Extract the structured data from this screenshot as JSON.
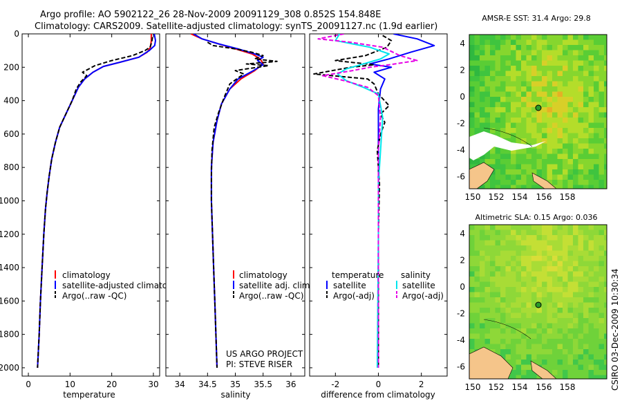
{
  "header": {
    "line1": "Argo profile: AO 5902122_26 28-Nov-2009 20091129_308 0.852S 154.848E",
    "line2": "Climatology: CARS2009. Satellite-adjusted climatology: synTS_20091127.nc (1.9d earlier)"
  },
  "colors": {
    "clim": "#ff0000",
    "sat": "#0000ff",
    "argo": "#000000",
    "sat_sal": "#00e5ee",
    "argo_sal": "#e600e6",
    "map_green": "#3fc43f",
    "land": "#f5c58a"
  },
  "chart_data": [
    {
      "type": "line",
      "name": "temperature-profile",
      "xlabel": "temperature",
      "ylabel": "",
      "xlim": [
        -1.5,
        31.5
      ],
      "ylim": [
        2050,
        0
      ],
      "xticks": [
        "0",
        "10",
        "20",
        "30"
      ],
      "xtick_values": [
        0,
        10,
        20,
        30
      ],
      "yticks": [
        "0",
        "200",
        "400",
        "600",
        "800",
        "1000",
        "1200",
        "1400",
        "1600",
        "1800",
        "2000"
      ],
      "ytick_values": [
        0,
        200,
        400,
        600,
        800,
        1000,
        1200,
        1400,
        1600,
        1800,
        2000
      ],
      "legend": [
        "climatology",
        "satellite-adjusted climatology",
        "Argo(..raw -QC)"
      ],
      "series": [
        {
          "name": "climatology",
          "color": "#ff0000",
          "points": [
            [
              29.5,
              0
            ],
            [
              29.5,
              40
            ],
            [
              29.3,
              80
            ],
            [
              28.5,
              110
            ],
            [
              26.5,
              140
            ],
            [
              22,
              170
            ],
            [
              18,
              195
            ],
            [
              15.5,
              230
            ],
            [
              13.5,
              270
            ],
            [
              12,
              320
            ],
            [
              10.5,
              400
            ],
            [
              9,
              480
            ],
            [
              7.5,
              560
            ],
            [
              6.5,
              650
            ],
            [
              5.6,
              750
            ],
            [
              5,
              850
            ],
            [
              4.5,
              950
            ],
            [
              4.1,
              1050
            ],
            [
              3.7,
              1200
            ],
            [
              3.3,
              1400
            ],
            [
              2.9,
              1600
            ],
            [
              2.6,
              1800
            ],
            [
              2.2,
              2000
            ]
          ]
        },
        {
          "name": "satellite-adjusted",
          "color": "#0000ff",
          "points": [
            [
              30.2,
              0
            ],
            [
              30.5,
              40
            ],
            [
              30.3,
              70
            ],
            [
              29,
              100
            ],
            [
              26.5,
              140
            ],
            [
              22,
              170
            ],
            [
              18,
              195
            ],
            [
              15.5,
              230
            ],
            [
              13.5,
              270
            ],
            [
              12,
              320
            ],
            [
              10.5,
              400
            ],
            [
              9,
              480
            ],
            [
              7.5,
              560
            ],
            [
              6.5,
              650
            ],
            [
              5.6,
              750
            ],
            [
              5,
              850
            ],
            [
              4.5,
              950
            ],
            [
              4.1,
              1050
            ],
            [
              3.7,
              1200
            ],
            [
              3.3,
              1400
            ],
            [
              2.9,
              1600
            ],
            [
              2.6,
              1800
            ],
            [
              2.2,
              2000
            ]
          ]
        },
        {
          "name": "argo",
          "color": "#000000",
          "dashed": true,
          "points": [
            [
              29.8,
              20
            ],
            [
              29.6,
              50
            ],
            [
              29.2,
              80
            ],
            [
              28,
              100
            ],
            [
              25,
              130
            ],
            [
              20,
              160
            ],
            [
              16,
              190
            ],
            [
              14.5,
              210
            ],
            [
              13,
              230
            ],
            [
              14,
              250
            ],
            [
              12.5,
              290
            ],
            [
              11.5,
              330
            ],
            [
              10.5,
              400
            ],
            [
              9,
              480
            ],
            [
              7.5,
              560
            ],
            [
              6.5,
              650
            ],
            [
              5.6,
              750
            ],
            [
              5,
              850
            ],
            [
              4.5,
              950
            ],
            [
              4.1,
              1050
            ],
            [
              3.7,
              1200
            ],
            [
              3.3,
              1400
            ],
            [
              2.9,
              1600
            ],
            [
              2.6,
              1800
            ],
            [
              2.2,
              2000
            ]
          ]
        }
      ]
    },
    {
      "type": "line",
      "name": "salinity-profile",
      "xlabel": "salinity",
      "xlim": [
        33.75,
        36.25
      ],
      "ylim": [
        2050,
        0
      ],
      "xticks": [
        "34",
        "34.5",
        "35",
        "35.5",
        "36"
      ],
      "xtick_values": [
        34,
        34.5,
        35,
        35.5,
        36
      ],
      "legend": [
        "climatology",
        "satellite adj. clim.",
        "Argo(..raw -QC)"
      ],
      "annotations": [
        "US ARGO PROJECT",
        "PI: STEVE RISER"
      ],
      "series": [
        {
          "name": "climatology",
          "color": "#ff0000",
          "points": [
            [
              34.2,
              0
            ],
            [
              34.4,
              30
            ],
            [
              34.7,
              60
            ],
            [
              35.0,
              90
            ],
            [
              35.3,
              120
            ],
            [
              35.45,
              150
            ],
            [
              35.5,
              180
            ],
            [
              35.35,
              220
            ],
            [
              35.1,
              270
            ],
            [
              34.9,
              330
            ],
            [
              34.75,
              420
            ],
            [
              34.67,
              520
            ],
            [
              34.6,
              650
            ],
            [
              34.57,
              800
            ],
            [
              34.57,
              1000
            ],
            [
              34.59,
              1200
            ],
            [
              34.61,
              1400
            ],
            [
              34.63,
              1600
            ],
            [
              34.65,
              1800
            ],
            [
              34.67,
              2000
            ]
          ]
        },
        {
          "name": "satellite-adjusted",
          "color": "#0000ff",
          "points": [
            [
              34.25,
              0
            ],
            [
              34.4,
              30
            ],
            [
              34.7,
              60
            ],
            [
              35.05,
              90
            ],
            [
              35.35,
              120
            ],
            [
              35.5,
              140
            ],
            [
              35.4,
              160
            ],
            [
              35.5,
              185
            ],
            [
              35.3,
              225
            ],
            [
              35.05,
              270
            ],
            [
              34.9,
              330
            ],
            [
              34.75,
              420
            ],
            [
              34.67,
              520
            ],
            [
              34.6,
              650
            ],
            [
              34.57,
              800
            ],
            [
              34.57,
              1000
            ],
            [
              34.59,
              1200
            ],
            [
              34.61,
              1400
            ],
            [
              34.63,
              1600
            ],
            [
              34.65,
              1800
            ],
            [
              34.67,
              2000
            ]
          ]
        },
        {
          "name": "argo",
          "color": "#000000",
          "dashed": true,
          "points": [
            [
              34.5,
              50
            ],
            [
              34.6,
              70
            ],
            [
              35.0,
              90
            ],
            [
              35.3,
              110
            ],
            [
              35.5,
              130
            ],
            [
              35.35,
              150
            ],
            [
              35.75,
              165
            ],
            [
              35.2,
              180
            ],
            [
              35.6,
              190
            ],
            [
              35.0,
              220
            ],
            [
              35.15,
              240
            ],
            [
              34.9,
              300
            ],
            [
              34.8,
              380
            ],
            [
              34.7,
              470
            ],
            [
              34.62,
              560
            ],
            [
              34.58,
              700
            ],
            [
              34.57,
              850
            ],
            [
              34.57,
              1000
            ],
            [
              34.59,
              1200
            ],
            [
              34.61,
              1400
            ],
            [
              34.63,
              1600
            ],
            [
              34.65,
              1800
            ],
            [
              34.67,
              2000
            ]
          ]
        }
      ]
    },
    {
      "type": "line",
      "name": "difference-profile",
      "xlabel": "difference from climatology",
      "xlim": [
        -3.2,
        3.2
      ],
      "ylim": [
        2050,
        0
      ],
      "xticks": [
        "-2",
        "0",
        "2"
      ],
      "xtick_values": [
        -2,
        0,
        2
      ],
      "legend_headers": [
        "temperature",
        "salinity"
      ],
      "legend": [
        "satellite",
        "Argo(-adj)",
        "satellite",
        "Argo(-adj)"
      ],
      "series": [
        {
          "name": "temperature satellite",
          "color": "#0000ff",
          "points": [
            [
              0.7,
              0
            ],
            [
              1.8,
              30
            ],
            [
              2.6,
              70
            ],
            [
              1.5,
              110
            ],
            [
              0.5,
              150
            ],
            [
              -0.4,
              180
            ],
            [
              0.6,
              200
            ],
            [
              -0.2,
              230
            ],
            [
              0.3,
              270
            ],
            [
              0.1,
              330
            ],
            [
              0,
              450
            ],
            [
              0,
              2000
            ]
          ]
        },
        {
          "name": "temperature Argo(-adj)",
          "color": "#000000",
          "dashed": true,
          "points": [
            [
              0.2,
              10
            ],
            [
              0.6,
              40
            ],
            [
              0.4,
              80
            ],
            [
              -0.6,
              130
            ],
            [
              -2.0,
              160
            ],
            [
              -0.2,
              185
            ],
            [
              -1.3,
              200
            ],
            [
              -3.0,
              240
            ],
            [
              -0.5,
              270
            ],
            [
              -0.2,
              300
            ],
            [
              0,
              360
            ],
            [
              0.5,
              430
            ],
            [
              0.1,
              480
            ],
            [
              0.3,
              530
            ],
            [
              0.1,
              600
            ],
            [
              -0.05,
              700
            ],
            [
              0.05,
              900
            ],
            [
              0,
              1200
            ],
            [
              0,
              2000
            ]
          ]
        },
        {
          "name": "salinity satellite",
          "color": "#00e5ee",
          "points": [
            [
              -1.8,
              0
            ],
            [
              -2.0,
              40
            ],
            [
              -0.4,
              80
            ],
            [
              0.5,
              120
            ],
            [
              0.1,
              150
            ],
            [
              -0.7,
              180
            ],
            [
              -1.5,
              210
            ],
            [
              -1.9,
              240
            ],
            [
              -1.5,
              280
            ],
            [
              -0.7,
              320
            ],
            [
              0,
              360
            ],
            [
              0.2,
              500
            ],
            [
              0.1,
              700
            ],
            [
              0,
              900
            ],
            [
              0,
              1200
            ],
            [
              -0.05,
              2000
            ]
          ]
        },
        {
          "name": "salinity Argo(-adj)",
          "color": "#e600e6",
          "dashed": true,
          "points": [
            [
              -1.6,
              0
            ],
            [
              -2.8,
              30
            ],
            [
              -1.3,
              50
            ],
            [
              0.2,
              80
            ],
            [
              1.0,
              130
            ],
            [
              1.8,
              160
            ],
            [
              0.5,
              185
            ],
            [
              -0.4,
              200
            ],
            [
              -1.2,
              220
            ],
            [
              -2.6,
              250
            ],
            [
              -1.6,
              280
            ],
            [
              -0.5,
              320
            ],
            [
              0,
              370
            ],
            [
              0.1,
              500
            ],
            [
              0,
              700
            ],
            [
              0,
              1000
            ],
            [
              0,
              2000
            ]
          ]
        }
      ]
    }
  ],
  "maps": [
    {
      "title": "AMSR-E SST: 31.4 Argo: 29.8",
      "xticks": [
        "150",
        "152",
        "154",
        "156",
        "158"
      ],
      "yticks": [
        "4",
        "2",
        "0",
        "-2",
        "-4",
        "-6"
      ]
    },
    {
      "title": "Altimetric SLA: 0.15 Argo: 0.036",
      "xticks": [
        "150",
        "152",
        "154",
        "156",
        "158"
      ],
      "yticks": [
        "4",
        "2",
        "0",
        "-2",
        "-4",
        "-6"
      ]
    }
  ],
  "footer": {
    "stamp": "CSIRO 03-Dec-2009 10:30:34"
  }
}
